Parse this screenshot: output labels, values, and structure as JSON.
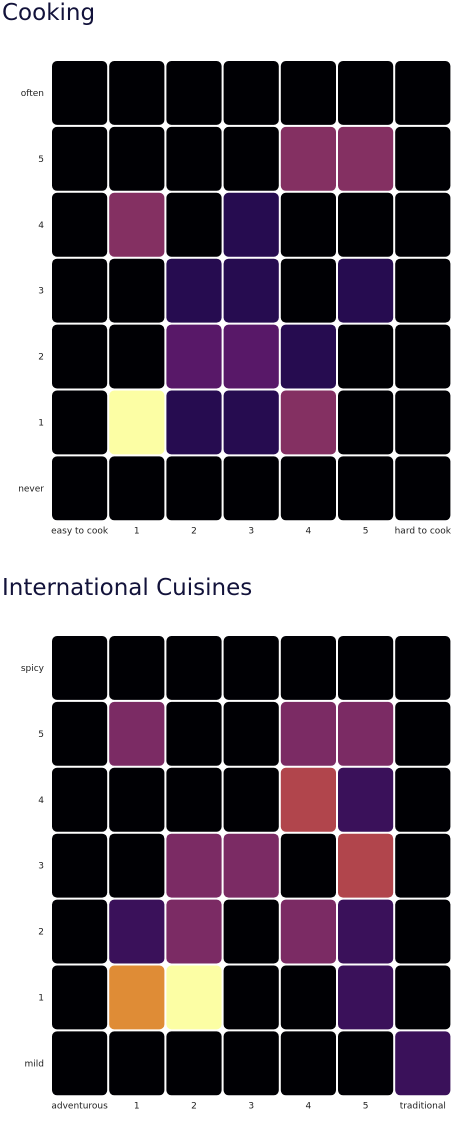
{
  "chart_data": [
    {
      "type": "heatmap",
      "title": "Cooking",
      "x_categories": [
        "easy to cook",
        "1",
        "2",
        "3",
        "4",
        "5",
        "hard to cook"
      ],
      "y_categories": [
        "often",
        "5",
        "4",
        "3",
        "2",
        "1",
        "never"
      ],
      "colorscale": "inferno",
      "value_range": [
        0,
        7
      ],
      "values": [
        [
          0,
          0,
          0,
          0,
          0,
          0,
          0
        ],
        [
          0,
          0,
          0,
          0,
          3,
          3,
          0
        ],
        [
          0,
          3,
          0,
          1,
          0,
          0,
          0
        ],
        [
          0,
          0,
          1,
          1,
          0,
          1,
          0
        ],
        [
          0,
          0,
          2,
          2,
          1,
          0,
          0
        ],
        [
          0,
          7,
          1,
          1,
          3,
          0,
          0
        ],
        [
          0,
          0,
          0,
          0,
          0,
          0,
          0
        ]
      ]
    },
    {
      "type": "heatmap",
      "title": "International Cuisines",
      "x_categories": [
        "adventurous",
        "1",
        "2",
        "3",
        "4",
        "5",
        "traditional"
      ],
      "y_categories": [
        "spicy",
        "5",
        "4",
        "3",
        "2",
        "1",
        "mild"
      ],
      "colorscale": "inferno",
      "value_range": [
        0,
        5
      ],
      "values": [
        [
          0,
          0,
          0,
          0,
          0,
          0,
          0
        ],
        [
          0,
          2,
          0,
          0,
          2,
          2,
          0
        ],
        [
          0,
          0,
          0,
          0,
          3,
          1,
          0
        ],
        [
          0,
          0,
          2,
          2,
          0,
          3,
          0
        ],
        [
          0,
          1,
          2,
          0,
          2,
          1,
          0
        ],
        [
          0,
          4,
          5,
          0,
          0,
          1,
          0
        ],
        [
          0,
          0,
          0,
          0,
          0,
          0,
          1
        ]
      ]
    }
  ]
}
